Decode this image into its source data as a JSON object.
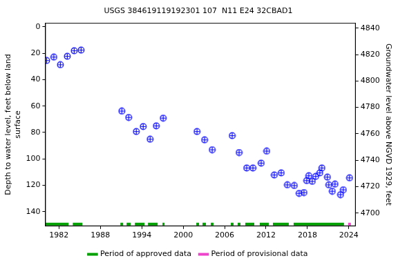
{
  "chart_data": {
    "type": "scatter",
    "title": "USGS 384619119192301 107  N11 E24 32CBAD1",
    "y_label": [
      "Depth to water level, feet below land",
      "surface"
    ],
    "y2_label": "Groundwater level above NGVD 1929, feet",
    "x": [
      1980.2,
      1981.25,
      1982.2,
      1983.2,
      1984.2,
      1985.2,
      1991.1,
      1992.1,
      1993.2,
      1994.2,
      1995.2,
      1996.1,
      1997.1,
      2002.0,
      2003.1,
      2004.2,
      2007.1,
      2008.1,
      2009.2,
      2010.1,
      2011.3,
      2012.1,
      2013.2,
      2014.2,
      2015.1,
      2016.1,
      2016.8,
      2017.5,
      2017.9,
      2018.2,
      2018.7,
      2019.2,
      2019.8,
      2020.1,
      2020.9,
      2021.1,
      2021.6,
      2022.0,
      2022.8,
      2023.2,
      2024.1
    ],
    "values": [
      25.5,
      22.9,
      28.7,
      22.3,
      18.1,
      17.6,
      63.8,
      68.6,
      79.3,
      75.5,
      85.1,
      75.0,
      69.1,
      79.3,
      85.6,
      93.1,
      82.4,
      95.2,
      106.9,
      106.9,
      103.2,
      94.1,
      112.2,
      110.6,
      119.7,
      120.2,
      126.1,
      125.5,
      116.5,
      112.8,
      117.0,
      113.3,
      110.6,
      106.9,
      113.8,
      119.7,
      124.5,
      119.1,
      127.1,
      123.4,
      114.4
    ],
    "color": "#0000ff",
    "marker": "circle_cross",
    "xlim": [
      1980,
      2025
    ],
    "xticks": [
      1982,
      1988,
      1994,
      2000,
      2006,
      2012,
      2018,
      2024
    ],
    "ylim": [
      -3,
      151
    ],
    "yticks": [
      0,
      20,
      40,
      60,
      80,
      100,
      120,
      140
    ],
    "y2lim": [
      4690,
      4844
    ],
    "y2ticks": [
      4700,
      4720,
      4740,
      4760,
      4780,
      4800,
      4820,
      4840
    ],
    "grid": false,
    "legend": "bottom",
    "periods": [
      {
        "name": "Period of approved data",
        "color": "#00a000",
        "ranges": [
          [
            1980.0,
            1983.4
          ],
          [
            1984.0,
            1985.4
          ],
          [
            1990.9,
            1991.3
          ],
          [
            1991.8,
            1992.4
          ],
          [
            1993.0,
            1994.4
          ],
          [
            1994.9,
            1996.3
          ],
          [
            1997.0,
            1997.3
          ],
          [
            2001.9,
            2002.3
          ],
          [
            2002.8,
            2003.3
          ],
          [
            2004.0,
            2004.4
          ],
          [
            2006.9,
            2007.3
          ],
          [
            2007.9,
            2008.3
          ],
          [
            2009.0,
            2010.3
          ],
          [
            2011.1,
            2012.4
          ],
          [
            2013.0,
            2015.3
          ],
          [
            2016.0,
            2023.3
          ]
        ]
      },
      {
        "name": "Period of provisional data",
        "color": "#ee44cc",
        "ranges": [
          [
            2023.9,
            2024.3
          ]
        ]
      }
    ]
  }
}
